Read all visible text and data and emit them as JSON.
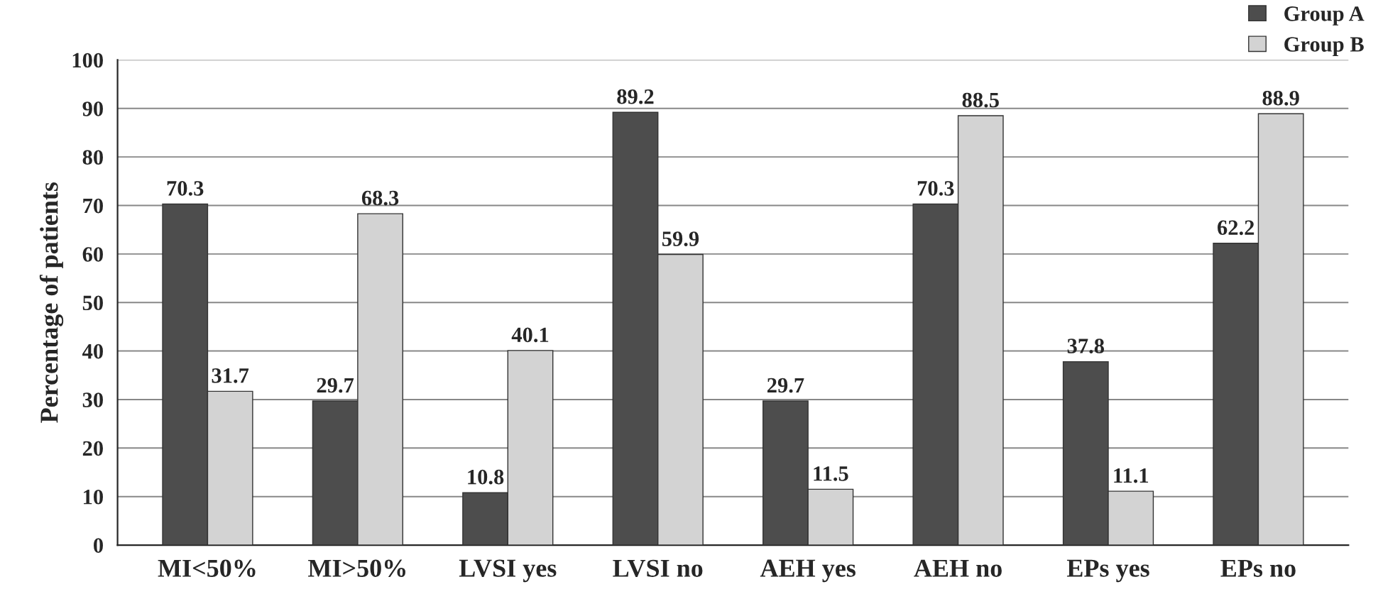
{
  "chart_data": {
    "type": "bar",
    "ylabel": "Percentage of patients",
    "categories": [
      "MI<50%",
      "MI>50%",
      "LVSI yes",
      "LVSI no",
      "AEH yes",
      "AEH no",
      "EPs yes",
      "EPs no"
    ],
    "series": [
      {
        "name": "Group A",
        "color": "#4d4d4d",
        "values": [
          70.3,
          29.7,
          10.8,
          89.2,
          29.7,
          70.3,
          37.8,
          62.2
        ]
      },
      {
        "name": "Group B",
        "color": "#d3d3d3",
        "values": [
          31.7,
          68.3,
          40.1,
          59.9,
          11.5,
          88.5,
          11.1,
          88.9
        ]
      }
    ],
    "ylim": [
      0,
      100
    ],
    "yticks": [
      0,
      10,
      20,
      30,
      40,
      50,
      60,
      70,
      80,
      90,
      100
    ],
    "grid": "y",
    "legend": "top right",
    "data_labels": true
  }
}
